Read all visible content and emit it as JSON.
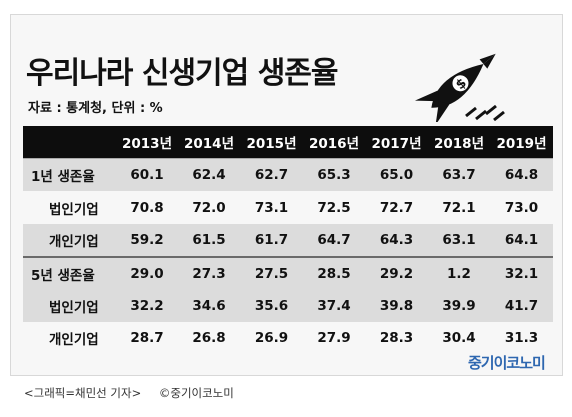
{
  "infographic": {
    "title": "우리나라 신생기업 생존율",
    "source": "자료 : 통계청, 단위 : %",
    "logo_text": "중기이코노미",
    "icon": "rocket-icon",
    "caption": {
      "credit": "<그래픽=채민선 기자>",
      "copyright": "©중기이코노미"
    }
  },
  "chart_data": {
    "type": "table",
    "title": "우리나라 신생기업 생존율",
    "unit": "%",
    "columns": [
      "2013년",
      "2014년",
      "2015년",
      "2016년",
      "2017년",
      "2018년",
      "2019년"
    ],
    "rows": [
      {
        "label": "1년 생존율",
        "values": [
          "60.1",
          "62.4",
          "62.7",
          "65.3",
          "65.0",
          "63.7",
          "64.8"
        ]
      },
      {
        "label": "법인기업",
        "values": [
          "70.8",
          "72.0",
          "73.1",
          "72.5",
          "72.7",
          "72.1",
          "73.0"
        ]
      },
      {
        "label": "개인기업",
        "values": [
          "59.2",
          "61.5",
          "61.7",
          "64.7",
          "64.3",
          "63.1",
          "64.1"
        ]
      },
      {
        "label": "5년 생존율",
        "values": [
          "29.0",
          "27.3",
          "27.5",
          "28.5",
          "29.2",
          "1.2",
          "32.1"
        ]
      },
      {
        "label": "법인기업",
        "values": [
          "32.2",
          "34.6",
          "35.6",
          "37.4",
          "39.8",
          "39.9",
          "41.7"
        ]
      },
      {
        "label": "개인기업",
        "values": [
          "28.7",
          "26.8",
          "26.9",
          "27.9",
          "28.3",
          "30.4",
          "31.3"
        ]
      }
    ]
  }
}
